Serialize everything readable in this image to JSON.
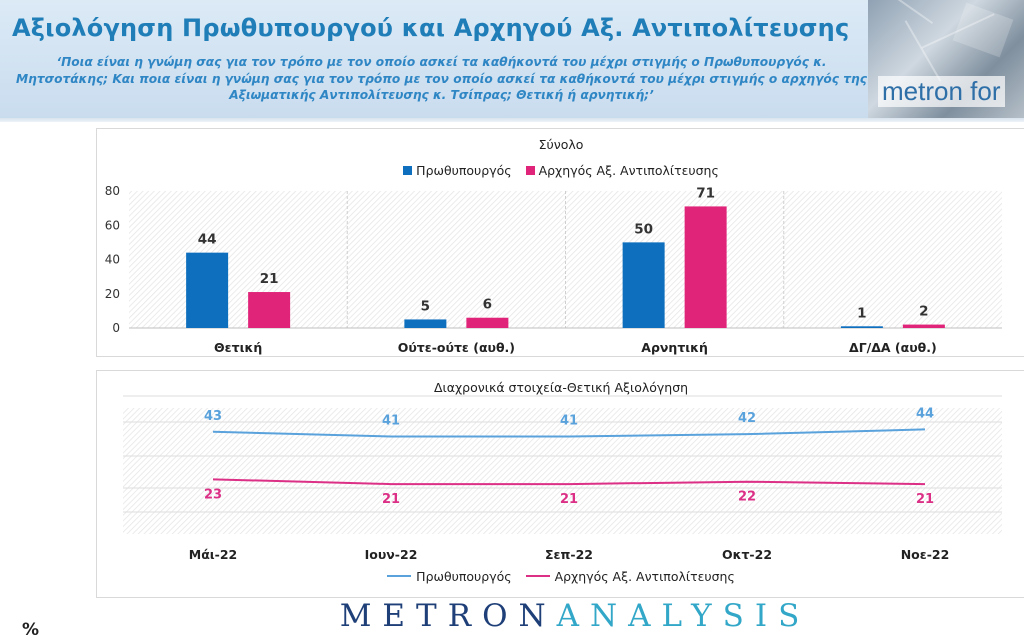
{
  "header": {
    "title": "Αξιολόγηση Πρωθυπουργού και Αρχηγού Αξ. Αντιπολίτευσης",
    "subtitle": "‘Ποια είναι η γνώμη σας για τον τρόπο με τον οποίο ασκεί τα καθήκοντά του μέχρι στιγμής ο Πρωθυπουργός κ. Μητσοτάκης; Και ποια είναι η γνώμη σας για τον τρόπο με τον οποίο ασκεί τα καθήκοντά του μέχρι στιγμής ο αρχηγός της Αξιωματικής Αντιπολίτευσης κ. Τσίπρας; Θετική ή αρνητική;’",
    "brand_banner": "metron for"
  },
  "colors": {
    "pm": "#0e6fbf",
    "opp": "#e0247a",
    "pm_line": "#5aa2dc",
    "opp_line": "#dc2f86"
  },
  "chart_data": [
    {
      "type": "bar",
      "title": "Σύνολο",
      "categories": [
        "Θετική",
        "Ούτε-ούτε (αυθ.)",
        "Αρνητική",
        "ΔΓ/ΔΑ (αυθ.)"
      ],
      "series": [
        {
          "name": "Πρωθυπουργός",
          "values": [
            44,
            5,
            50,
            1
          ]
        },
        {
          "name": "Αρχηγός Αξ. Αντιπολίτευσης",
          "values": [
            21,
            6,
            71,
            2
          ]
        }
      ],
      "yticks": [
        "0",
        "20",
        "40",
        "60",
        "80"
      ],
      "ylim": [
        0,
        80
      ],
      "legend": "top",
      "grid": true
    },
    {
      "type": "line",
      "title": "Διαχρονικά στοιχεία-Θετική Αξιολόγηση",
      "categories": [
        "Μάι-22",
        "Ιουν-22",
        "Σεπ-22",
        "Οκτ-22",
        "Νοε-22"
      ],
      "series": [
        {
          "name": "Πρωθυπουργός",
          "values": [
            43,
            41,
            41,
            42,
            44
          ]
        },
        {
          "name": "Αρχηγός Αξ. Αντιπολίτευσης",
          "values": [
            23,
            21,
            21,
            22,
            21
          ]
        }
      ],
      "legend": "bottom",
      "grid": true
    }
  ],
  "footer": {
    "logo_left": "METRON",
    "logo_right": "ANALYSIS",
    "unit": "%"
  }
}
